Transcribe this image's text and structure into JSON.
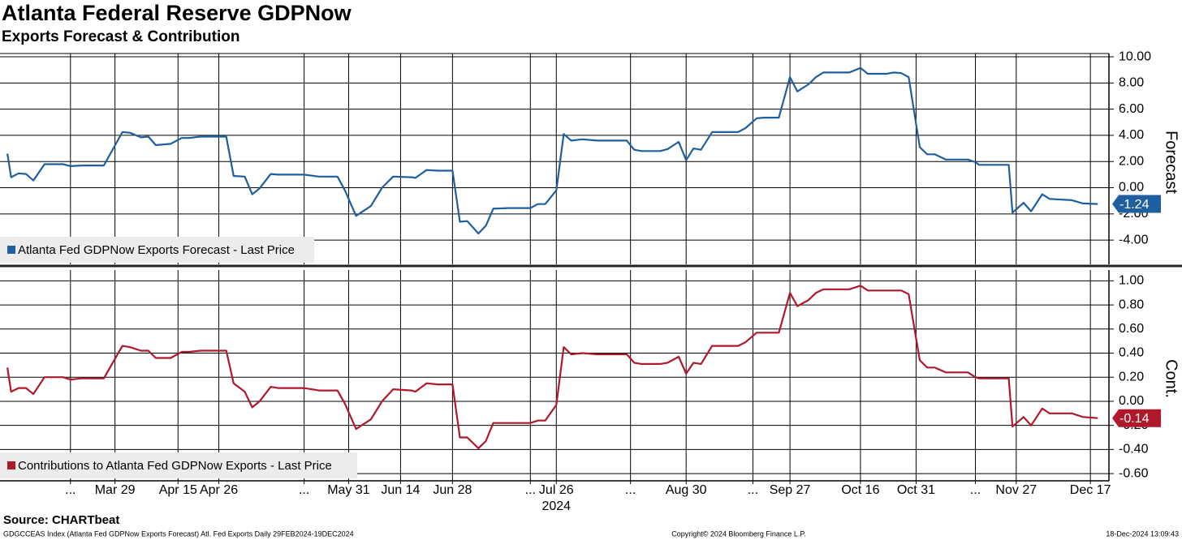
{
  "title": "Atlanta Federal Reserve GDPNow",
  "subtitle": "Exports Forecast & Contribution",
  "source": "Source: CHARTbeat",
  "footer": {
    "index": "GDGCCEAS Index (Atlanta Fed GDPNow Exports Forecast) Atl. Fed Exports  Daily 29FEB2024-19DEC2024",
    "copyright": "Copyright© 2024 Bloomberg Finance L.P.",
    "timestamp": "18-Dec-2024 13:09:43"
  },
  "chart_data": [
    {
      "type": "line",
      "y_axis_label": "Forecast",
      "xlim": [
        "2024-02-27",
        "2024-12-22"
      ],
      "x": [
        "2024-02-29",
        "2024-03-01",
        "2024-03-03",
        "2024-03-05",
        "2024-03-07",
        "2024-03-10",
        "2024-03-15",
        "2024-03-17",
        "2024-03-20",
        "2024-03-26",
        "2024-03-31",
        "2024-04-02",
        "2024-04-05",
        "2024-04-07",
        "2024-04-09",
        "2024-04-13",
        "2024-04-16",
        "2024-04-18",
        "2024-04-21",
        "2024-04-28",
        "2024-04-30",
        "2024-05-03",
        "2024-05-05",
        "2024-05-07",
        "2024-05-10",
        "2024-05-12",
        "2024-05-19",
        "2024-05-23",
        "2024-05-28",
        "2024-05-30",
        "2024-06-02",
        "2024-06-06",
        "2024-06-09",
        "2024-06-12",
        "2024-06-17",
        "2024-06-18",
        "2024-06-21",
        "2024-06-24",
        "2024-06-28",
        "2024-06-30",
        "2024-07-02",
        "2024-07-05",
        "2024-07-07",
        "2024-07-09",
        "2024-07-13",
        "2024-07-19",
        "2024-07-21",
        "2024-07-23",
        "2024-07-26",
        "2024-07-28",
        "2024-07-30",
        "2024-08-02",
        "2024-08-06",
        "2024-08-14",
        "2024-08-16",
        "2024-08-18",
        "2024-08-23",
        "2024-08-25",
        "2024-08-28",
        "2024-08-30",
        "2024-09-01",
        "2024-09-03",
        "2024-09-06",
        "2024-09-13",
        "2024-09-15",
        "2024-09-18",
        "2024-09-20",
        "2024-09-24",
        "2024-09-27",
        "2024-09-29",
        "2024-10-02",
        "2024-10-04",
        "2024-10-06",
        "2024-10-13",
        "2024-10-16",
        "2024-10-18",
        "2024-10-23",
        "2024-10-25",
        "2024-10-27",
        "2024-10-29",
        "2024-11-01",
        "2024-11-03",
        "2024-11-05",
        "2024-11-08",
        "2024-11-14",
        "2024-11-16",
        "2024-11-17",
        "2024-11-25",
        "2024-11-26",
        "2024-11-29",
        "2024-12-01",
        "2024-12-04",
        "2024-12-06",
        "2024-12-12",
        "2024-12-15",
        "2024-12-19"
      ],
      "series": [
        {
          "name": "Atlanta Fed GDPNow Exports Forecast - Last Price",
          "color": "#1f5f9f",
          "last_value_label": "-1.24",
          "values": [
            2.6,
            0.8,
            1.1,
            1.05,
            0.55,
            1.8,
            1.8,
            1.65,
            1.7,
            1.7,
            4.25,
            4.2,
            3.85,
            3.9,
            3.25,
            3.35,
            3.8,
            3.8,
            3.9,
            3.9,
            0.9,
            0.85,
            -0.5,
            -0.05,
            1.05,
            1.0,
            1.0,
            0.85,
            0.85,
            -0.2,
            -2.15,
            -1.4,
            0.0,
            0.85,
            0.8,
            0.75,
            1.35,
            1.3,
            1.3,
            -2.6,
            -2.55,
            -3.5,
            -2.9,
            -1.6,
            -1.55,
            -1.55,
            -1.25,
            -1.25,
            -0.2,
            4.1,
            3.6,
            3.7,
            3.6,
            3.6,
            2.9,
            2.8,
            2.8,
            2.95,
            3.5,
            2.1,
            3.0,
            2.9,
            4.25,
            4.25,
            4.55,
            5.3,
            5.35,
            5.35,
            8.45,
            7.35,
            7.9,
            8.45,
            8.8,
            8.8,
            9.15,
            8.7,
            8.7,
            8.8,
            8.75,
            8.45,
            3.1,
            2.55,
            2.55,
            2.15,
            2.15,
            1.95,
            1.75,
            1.75,
            -1.9,
            -1.15,
            -1.8,
            -0.5,
            -0.85,
            -0.95,
            -1.2,
            -1.24
          ]
        }
      ],
      "ylim": [
        -5.85,
        10.25
      ],
      "yticks": [
        {
          "value": 10,
          "label": "10.00"
        },
        {
          "value": 8,
          "label": "8.00"
        },
        {
          "value": 6,
          "label": "6.00"
        },
        {
          "value": 4,
          "label": "4.00"
        },
        {
          "value": 2,
          "label": "2.00"
        },
        {
          "value": 0,
          "label": "0.00"
        },
        {
          "value": -2,
          "label": "-2.00"
        },
        {
          "value": -4,
          "label": "-4.00"
        }
      ],
      "grid": true
    },
    {
      "type": "line",
      "y_axis_label": "Cont.",
      "x_axis_label": "2024",
      "xlim": [
        "2024-02-27",
        "2024-12-22"
      ],
      "x": [
        "2024-02-29",
        "2024-03-01",
        "2024-03-03",
        "2024-03-05",
        "2024-03-07",
        "2024-03-10",
        "2024-03-15",
        "2024-03-17",
        "2024-03-20",
        "2024-03-26",
        "2024-03-31",
        "2024-04-02",
        "2024-04-05",
        "2024-04-07",
        "2024-04-09",
        "2024-04-13",
        "2024-04-16",
        "2024-04-18",
        "2024-04-21",
        "2024-04-28",
        "2024-04-30",
        "2024-05-03",
        "2024-05-05",
        "2024-05-07",
        "2024-05-10",
        "2024-05-12",
        "2024-05-19",
        "2024-05-23",
        "2024-05-28",
        "2024-05-30",
        "2024-06-02",
        "2024-06-06",
        "2024-06-09",
        "2024-06-12",
        "2024-06-17",
        "2024-06-18",
        "2024-06-21",
        "2024-06-24",
        "2024-06-28",
        "2024-06-30",
        "2024-07-02",
        "2024-07-05",
        "2024-07-07",
        "2024-07-09",
        "2024-07-13",
        "2024-07-19",
        "2024-07-21",
        "2024-07-23",
        "2024-07-26",
        "2024-07-28",
        "2024-07-30",
        "2024-08-02",
        "2024-08-06",
        "2024-08-14",
        "2024-08-16",
        "2024-08-18",
        "2024-08-23",
        "2024-08-25",
        "2024-08-28",
        "2024-08-30",
        "2024-09-01",
        "2024-09-03",
        "2024-09-06",
        "2024-09-13",
        "2024-09-15",
        "2024-09-18",
        "2024-09-20",
        "2024-09-24",
        "2024-09-27",
        "2024-09-29",
        "2024-10-02",
        "2024-10-04",
        "2024-10-06",
        "2024-10-13",
        "2024-10-16",
        "2024-10-18",
        "2024-10-23",
        "2024-10-25",
        "2024-10-27",
        "2024-10-29",
        "2024-11-01",
        "2024-11-03",
        "2024-11-05",
        "2024-11-08",
        "2024-11-14",
        "2024-11-16",
        "2024-11-17",
        "2024-11-25",
        "2024-11-26",
        "2024-11-29",
        "2024-12-01",
        "2024-12-04",
        "2024-12-06",
        "2024-12-12",
        "2024-12-15",
        "2024-12-19"
      ],
      "series": [
        {
          "name": "Contributions to Atlanta Fed GDPNow Exports - Last Price",
          "color": "#b0182b",
          "last_value_label": "-0.14",
          "values": [
            0.28,
            0.08,
            0.11,
            0.11,
            0.06,
            0.2,
            0.2,
            0.18,
            0.19,
            0.19,
            0.46,
            0.45,
            0.42,
            0.42,
            0.36,
            0.36,
            0.41,
            0.41,
            0.42,
            0.42,
            0.15,
            0.08,
            -0.05,
            0.0,
            0.12,
            0.11,
            0.11,
            0.09,
            0.09,
            -0.02,
            -0.23,
            -0.15,
            0.0,
            0.1,
            0.09,
            0.08,
            0.15,
            0.14,
            0.14,
            -0.3,
            -0.3,
            -0.39,
            -0.33,
            -0.18,
            -0.18,
            -0.18,
            -0.16,
            -0.16,
            -0.03,
            0.45,
            0.39,
            0.4,
            0.39,
            0.39,
            0.32,
            0.31,
            0.31,
            0.32,
            0.37,
            0.23,
            0.32,
            0.31,
            0.46,
            0.46,
            0.49,
            0.57,
            0.57,
            0.57,
            0.9,
            0.79,
            0.84,
            0.9,
            0.93,
            0.93,
            0.96,
            0.92,
            0.92,
            0.92,
            0.92,
            0.89,
            0.34,
            0.28,
            0.28,
            0.24,
            0.24,
            0.2,
            0.19,
            0.19,
            -0.21,
            -0.13,
            -0.2,
            -0.06,
            -0.1,
            -0.1,
            -0.13,
            -0.14
          ]
        }
      ],
      "ylim": [
        -0.66,
        1.09
      ],
      "yticks": [
        {
          "value": 1,
          "label": "1.00"
        },
        {
          "value": 0.8,
          "label": "0.80"
        },
        {
          "value": 0.6,
          "label": "0.60"
        },
        {
          "value": 0.4,
          "label": "0.40"
        },
        {
          "value": 0.2,
          "label": "0.20"
        },
        {
          "value": 0,
          "label": "0.00"
        },
        {
          "value": -0.2,
          "label": "-0.20"
        },
        {
          "value": -0.4,
          "label": "-0.40"
        },
        {
          "value": -0.6,
          "label": "-0.60"
        }
      ],
      "xticks": [
        {
          "value": "2024-03-17",
          "label": "..."
        },
        {
          "value": "2024-03-29",
          "label": "Mar 29"
        },
        {
          "value": "2024-04-15",
          "label": "Apr 15"
        },
        {
          "value": "2024-04-26",
          "label": "Apr 26"
        },
        {
          "value": "2024-05-19",
          "label": "..."
        },
        {
          "value": "2024-05-31",
          "label": "May 31"
        },
        {
          "value": "2024-06-14",
          "label": "Jun 14"
        },
        {
          "value": "2024-06-28",
          "label": "Jun 28"
        },
        {
          "value": "2024-07-19",
          "label": "..."
        },
        {
          "value": "2024-07-26",
          "label": "Jul 26"
        },
        {
          "value": "2024-08-15",
          "label": "..."
        },
        {
          "value": "2024-08-30",
          "label": "Aug 30"
        },
        {
          "value": "2024-09-17",
          "label": "..."
        },
        {
          "value": "2024-09-27",
          "label": "Sep 27"
        },
        {
          "value": "2024-10-16",
          "label": "Oct 16"
        },
        {
          "value": "2024-10-31",
          "label": "Oct 31"
        },
        {
          "value": "2024-11-16",
          "label": "..."
        },
        {
          "value": "2024-11-27",
          "label": "Nov 27"
        },
        {
          "value": "2024-12-17",
          "label": "Dec 17"
        }
      ],
      "grid": true
    }
  ]
}
